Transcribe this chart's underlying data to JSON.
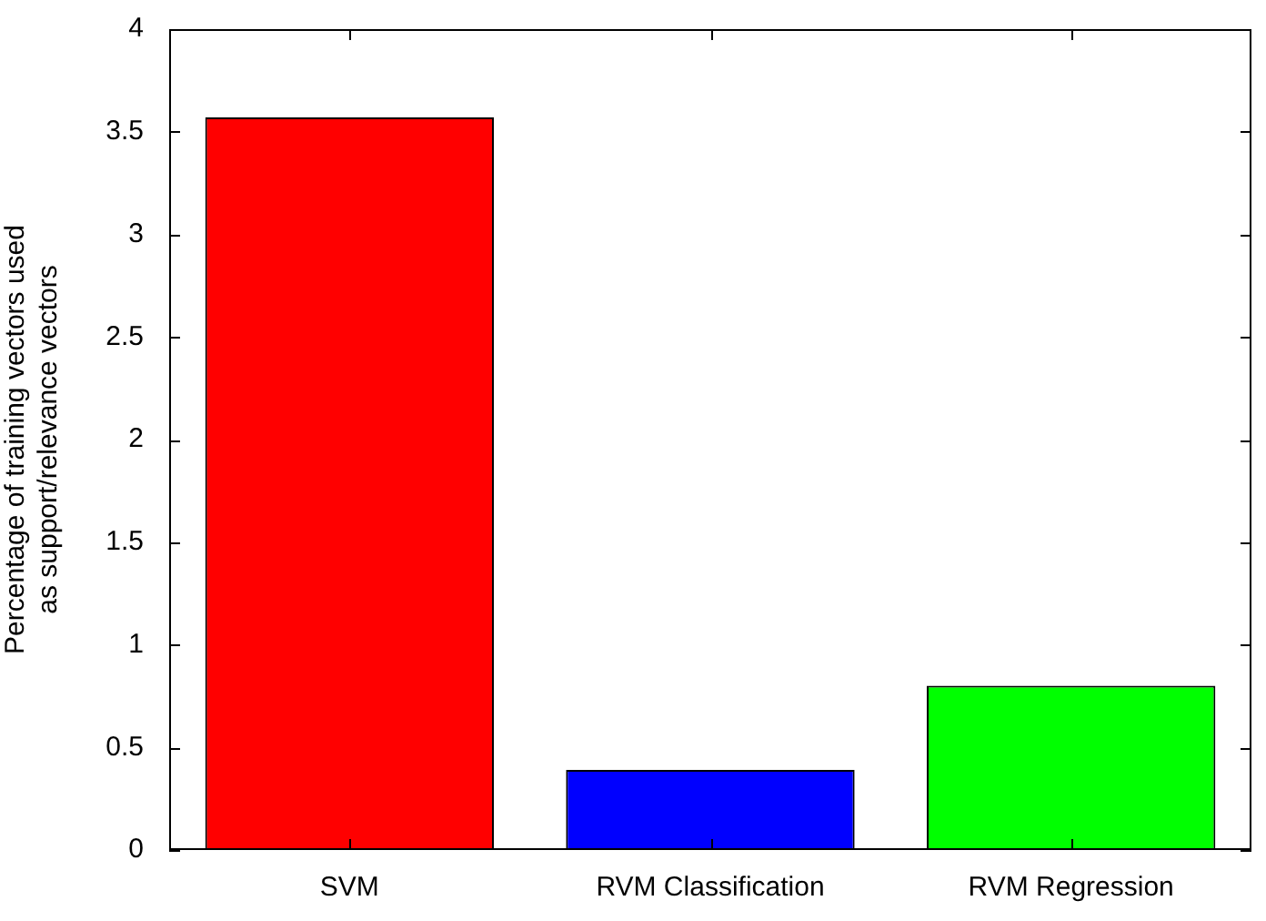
{
  "chart_data": {
    "type": "bar",
    "ylabel": "Percentage of training vectors used\nas support/relevance vectors",
    "categories": [
      "SVM",
      "RVM Classification",
      "RVM Regression"
    ],
    "values": [
      3.57,
      0.39,
      0.8
    ],
    "colors": [
      "#ff0000",
      "#0000ff",
      "#00ff00"
    ],
    "ylim": [
      0,
      4
    ],
    "yticks": [
      0,
      0.5,
      1,
      1.5,
      2,
      2.5,
      3,
      3.5,
      4
    ],
    "grid": false,
    "legend": false
  }
}
